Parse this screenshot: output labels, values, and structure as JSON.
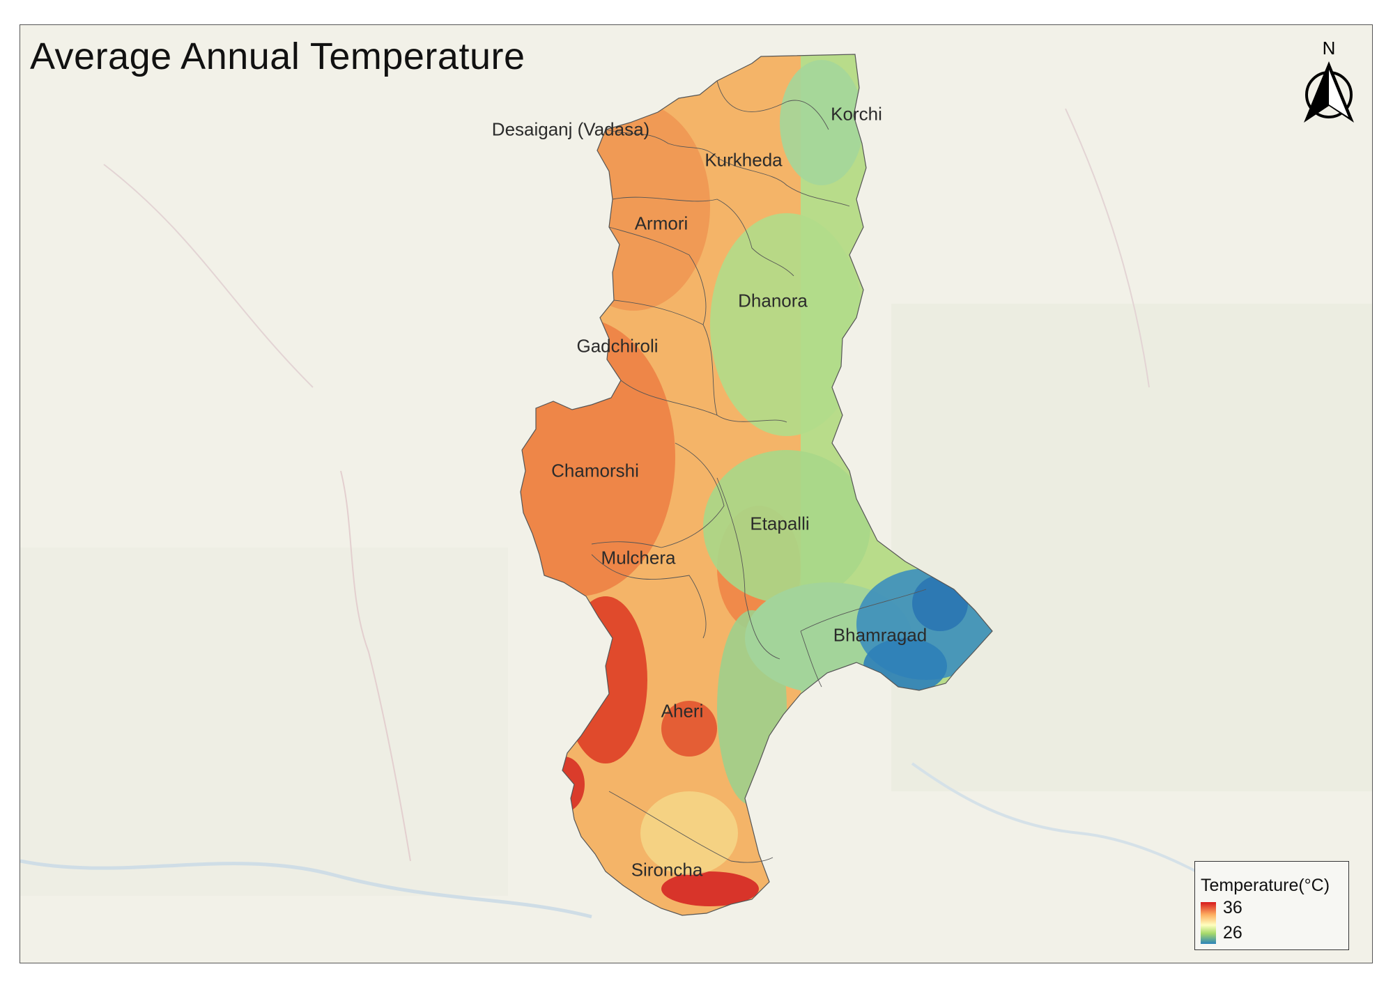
{
  "map": {
    "title": "Average Annual Temperature",
    "north_label": "N",
    "places": [
      {
        "name": "Desaiganj (Vadasa)"
      },
      {
        "name": "Korchi"
      },
      {
        "name": "Kurkheda"
      },
      {
        "name": "Armori"
      },
      {
        "name": "Dhanora"
      },
      {
        "name": "Gadchiroli"
      },
      {
        "name": "Chamorshi"
      },
      {
        "name": "Etapalli"
      },
      {
        "name": "Mulchera"
      },
      {
        "name": "Bhamragad"
      },
      {
        "name": "Aheri"
      },
      {
        "name": "Sironcha"
      }
    ],
    "legend": {
      "title": "Temperature(°C)",
      "max_label": "36",
      "min_label": "26",
      "max_value": 36,
      "min_value": 26,
      "ramp_colors": [
        "#d7191c",
        "#fdae61",
        "#ffffbf",
        "#a6d96a",
        "#2b83ba"
      ]
    }
  }
}
